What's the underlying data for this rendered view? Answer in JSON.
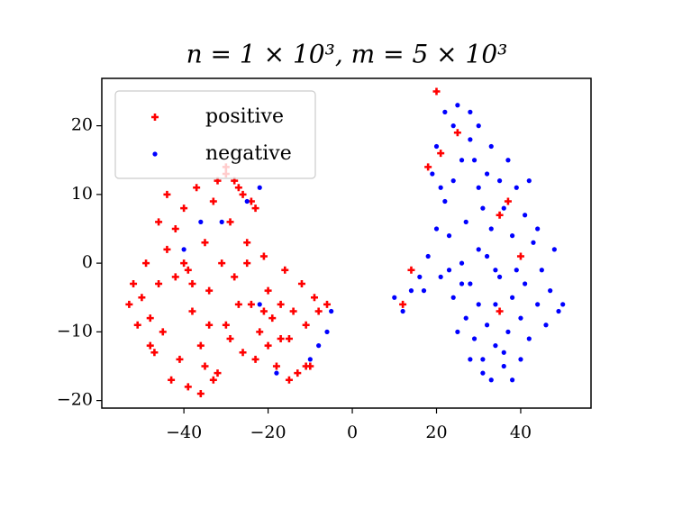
{
  "chart_data": {
    "type": "scatter",
    "title": "n = 1 × 10³, m = 5 × 10³",
    "xlim": [
      -59.5,
      56.7
    ],
    "ylim": [
      -21.1,
      26.9
    ],
    "xticks": [
      {
        "value": -40,
        "label": "−40"
      },
      {
        "value": -20,
        "label": "−20"
      },
      0,
      20,
      40
    ],
    "yticks": [
      {
        "value": -20,
        "label": "−20"
      },
      {
        "value": -10,
        "label": "−10"
      },
      0,
      10,
      20
    ],
    "legend": "upper left",
    "series": [
      {
        "name": "positive",
        "color": "#ff0000",
        "marker": "plus",
        "x": [
          -50,
          -48,
          -46,
          -45,
          -44,
          -42,
          -41,
          -40,
          -39,
          -38,
          -37,
          -36,
          -35,
          -34,
          -33,
          -32,
          -31,
          -30,
          -30,
          -29,
          -28,
          -27,
          -26,
          -25,
          -24,
          -23,
          -22,
          -21,
          -20,
          -19,
          -18,
          -17,
          -16,
          -15,
          -14,
          -13,
          -12,
          -11,
          -10,
          -9,
          -8,
          -6,
          -53,
          -52,
          -51,
          -49,
          -47,
          -43,
          -39,
          -36,
          -33,
          -30,
          -32,
          -28,
          -26,
          -24,
          -44,
          -46,
          -38,
          -34,
          -27,
          -23,
          -20,
          -15,
          -11,
          -42,
          -48,
          -40,
          -35,
          -29,
          -25,
          -21,
          -17,
          20,
          25,
          37,
          35,
          12,
          35,
          40,
          14,
          21,
          18
        ],
        "y": [
          -5,
          -8,
          -3,
          -10,
          2,
          5,
          -14,
          8,
          -1,
          -7,
          11,
          -12,
          3,
          -4,
          9,
          -16,
          0,
          13,
          -9,
          6,
          -2,
          11,
          -13,
          3,
          -6,
          8,
          -10,
          1,
          -4,
          -8,
          -15,
          -6,
          -1,
          -11,
          -7,
          -16,
          -3,
          -9,
          -15,
          -5,
          -7,
          -6,
          -6,
          -3,
          -9,
          0,
          -13,
          -17,
          -18,
          -19,
          -17,
          14,
          12,
          12,
          10,
          9,
          10,
          6,
          -3,
          -9,
          -6,
          -14,
          -12,
          -17,
          -15,
          -2,
          -12,
          0,
          -15,
          -11,
          0,
          -7,
          -11,
          25,
          19,
          9,
          7,
          -6,
          -7,
          1,
          -1,
          16,
          14
        ]
      },
      {
        "name": "negative",
        "color": "#0000ff",
        "marker": "dot",
        "x": [
          10,
          12,
          14,
          16,
          18,
          20,
          22,
          24,
          26,
          28,
          30,
          22,
          25,
          20,
          19,
          23,
          26,
          28,
          30,
          32,
          34,
          36,
          38,
          33,
          31,
          29,
          27,
          24,
          21,
          30,
          33,
          36,
          39,
          41,
          43,
          45,
          47,
          49,
          50,
          46,
          42,
          40,
          38,
          35,
          32,
          35,
          37,
          33,
          30,
          27,
          25,
          28,
          31,
          40,
          44,
          48,
          42,
          38,
          34,
          31,
          28,
          24,
          21,
          26,
          37,
          41,
          44,
          39,
          32,
          29,
          36,
          34,
          23,
          17,
          -36,
          -31,
          -40,
          -22,
          -25,
          -10,
          -8,
          -18,
          -5,
          -6,
          -22
        ],
        "y": [
          -5,
          -7,
          -4,
          -2,
          1,
          5,
          9,
          12,
          15,
          18,
          20,
          22,
          23,
          17,
          13,
          4,
          0,
          -3,
          -6,
          -9,
          -12,
          -15,
          -17,
          -17,
          -14,
          -11,
          -8,
          -5,
          -2,
          2,
          5,
          8,
          11,
          7,
          3,
          -1,
          -4,
          -7,
          -6,
          -9,
          -11,
          -8,
          -5,
          -2,
          1,
          12,
          15,
          17,
          11,
          6,
          -10,
          -14,
          -16,
          -14,
          -6,
          2,
          12,
          4,
          -1,
          8,
          22,
          20,
          11,
          -3,
          -10,
          -3,
          5,
          -1,
          13,
          15,
          -13,
          -6,
          -1,
          -4,
          6,
          6,
          2,
          11,
          9,
          -14,
          -12,
          -16,
          -7,
          -10,
          -6
        ]
      }
    ]
  }
}
